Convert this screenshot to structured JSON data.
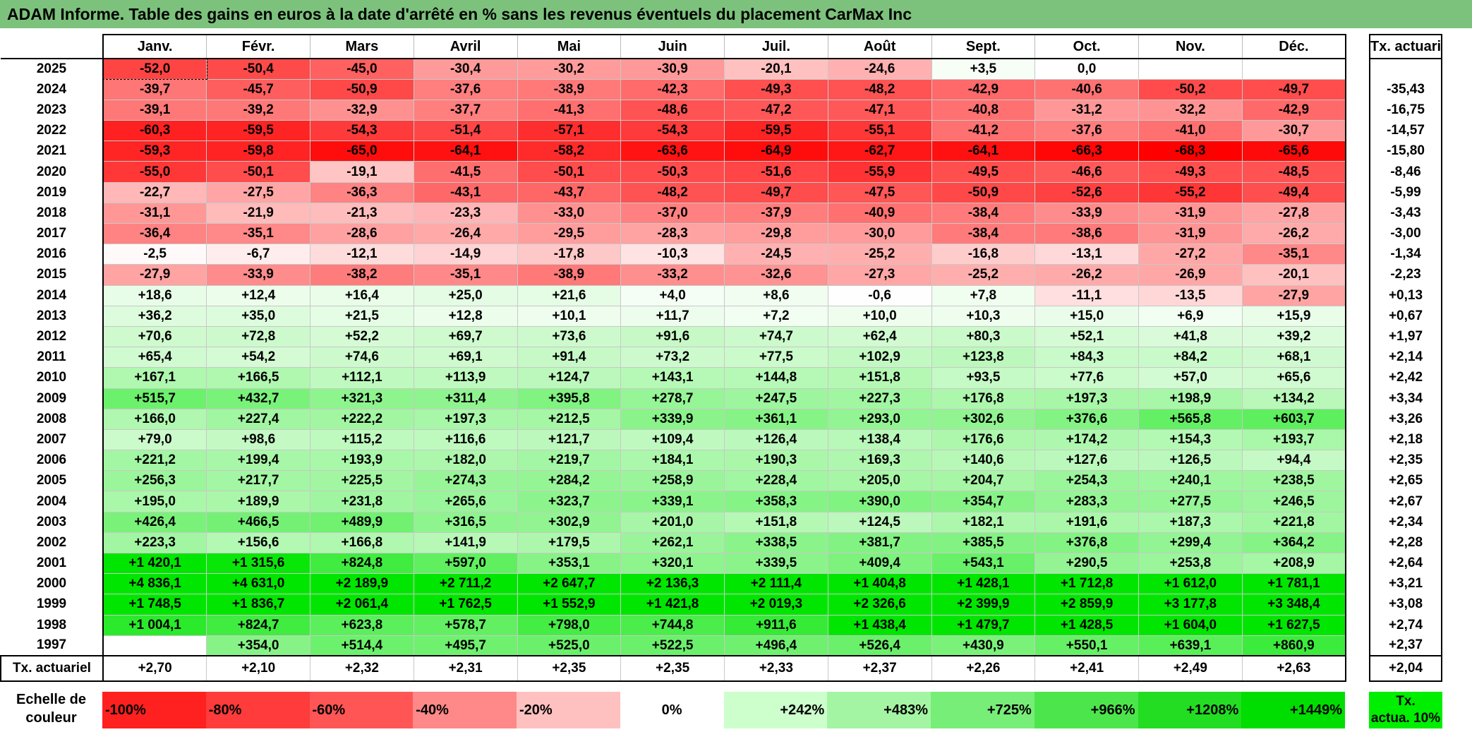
{
  "title": "ADAM Informe. Table des gains en euros à la date d'arrêté en % sans les revenus éventuels du placement CarMax Inc",
  "header": {
    "months": [
      "Janv.",
      "Févr.",
      "Mars",
      "Avril",
      "Mai",
      "Juin",
      "Juil.",
      "Août",
      "Sept.",
      "Oct.",
      "Nov.",
      "Déc."
    ],
    "side": "Tx. actuariel"
  },
  "rows": [
    {
      "year": "2025",
      "cells": [
        "-52,0",
        "-50,4",
        "-45,0",
        "-30,4",
        "-30,2",
        "-30,9",
        "-20,1",
        "-24,6",
        "+3,5",
        "0,0",
        "",
        ""
      ],
      "tx": ""
    },
    {
      "year": "2024",
      "cells": [
        "-39,7",
        "-45,7",
        "-50,9",
        "-37,6",
        "-38,9",
        "-42,3",
        "-49,3",
        "-48,2",
        "-42,9",
        "-40,6",
        "-50,2",
        "-49,7"
      ],
      "tx": "-35,43"
    },
    {
      "year": "2023",
      "cells": [
        "-39,1",
        "-39,2",
        "-32,9",
        "-37,7",
        "-41,3",
        "-48,6",
        "-47,2",
        "-47,1",
        "-40,8",
        "-31,2",
        "-32,2",
        "-42,9"
      ],
      "tx": "-16,75"
    },
    {
      "year": "2022",
      "cells": [
        "-60,3",
        "-59,5",
        "-54,3",
        "-51,4",
        "-57,1",
        "-54,3",
        "-59,5",
        "-55,1",
        "-41,2",
        "-37,6",
        "-41,0",
        "-30,7"
      ],
      "tx": "-14,57"
    },
    {
      "year": "2021",
      "cells": [
        "-59,3",
        "-59,8",
        "-65,0",
        "-64,1",
        "-58,2",
        "-63,6",
        "-64,9",
        "-62,7",
        "-64,1",
        "-66,3",
        "-68,3",
        "-65,6"
      ],
      "tx": "-15,80"
    },
    {
      "year": "2020",
      "cells": [
        "-55,0",
        "-50,1",
        "-19,1",
        "-41,5",
        "-50,1",
        "-50,3",
        "-51,6",
        "-55,9",
        "-49,5",
        "-46,6",
        "-49,3",
        "-48,5"
      ],
      "tx": "-8,46"
    },
    {
      "year": "2019",
      "cells": [
        "-22,7",
        "-27,5",
        "-36,3",
        "-43,1",
        "-43,7",
        "-48,2",
        "-49,7",
        "-47,5",
        "-50,9",
        "-52,6",
        "-55,2",
        "-49,4"
      ],
      "tx": "-5,99"
    },
    {
      "year": "2018",
      "cells": [
        "-31,1",
        "-21,9",
        "-21,3",
        "-23,3",
        "-33,0",
        "-37,0",
        "-37,9",
        "-40,9",
        "-38,4",
        "-33,9",
        "-31,9",
        "-27,8"
      ],
      "tx": "-3,43"
    },
    {
      "year": "2017",
      "cells": [
        "-36,4",
        "-35,1",
        "-28,6",
        "-26,4",
        "-29,5",
        "-28,3",
        "-29,8",
        "-30,0",
        "-38,4",
        "-38,6",
        "-31,9",
        "-26,2"
      ],
      "tx": "-3,00"
    },
    {
      "year": "2016",
      "cells": [
        "-2,5",
        "-6,7",
        "-12,1",
        "-14,9",
        "-17,8",
        "-10,3",
        "-24,5",
        "-25,2",
        "-16,8",
        "-13,1",
        "-27,2",
        "-35,1"
      ],
      "tx": "-1,34"
    },
    {
      "year": "2015",
      "cells": [
        "-27,9",
        "-33,9",
        "-38,2",
        "-35,1",
        "-38,9",
        "-33,2",
        "-32,6",
        "-27,3",
        "-25,2",
        "-26,2",
        "-26,9",
        "-20,1"
      ],
      "tx": "-2,23"
    },
    {
      "year": "2014",
      "cells": [
        "+18,6",
        "+12,4",
        "+16,4",
        "+25,0",
        "+21,6",
        "+4,0",
        "+8,6",
        "-0,6",
        "+7,8",
        "-11,1",
        "-13,5",
        "-27,9"
      ],
      "tx": "+0,13"
    },
    {
      "year": "2013",
      "cells": [
        "+36,2",
        "+35,0",
        "+21,5",
        "+12,8",
        "+10,1",
        "+11,7",
        "+7,2",
        "+10,0",
        "+10,3",
        "+15,0",
        "+6,9",
        "+15,9"
      ],
      "tx": "+0,67"
    },
    {
      "year": "2012",
      "cells": [
        "+70,6",
        "+72,8",
        "+52,2",
        "+69,7",
        "+73,6",
        "+91,6",
        "+74,7",
        "+62,4",
        "+80,3",
        "+52,1",
        "+41,8",
        "+39,2"
      ],
      "tx": "+1,97"
    },
    {
      "year": "2011",
      "cells": [
        "+65,4",
        "+54,2",
        "+74,6",
        "+69,1",
        "+91,4",
        "+73,2",
        "+77,5",
        "+102,9",
        "+123,8",
        "+84,3",
        "+84,2",
        "+68,1"
      ],
      "tx": "+2,14"
    },
    {
      "year": "2010",
      "cells": [
        "+167,1",
        "+166,5",
        "+112,1",
        "+113,9",
        "+124,7",
        "+143,1",
        "+144,8",
        "+151,8",
        "+93,5",
        "+77,6",
        "+57,0",
        "+65,6"
      ],
      "tx": "+2,42"
    },
    {
      "year": "2009",
      "cells": [
        "+515,7",
        "+432,7",
        "+321,3",
        "+311,4",
        "+395,8",
        "+278,7",
        "+247,5",
        "+227,3",
        "+176,8",
        "+197,3",
        "+198,9",
        "+134,2"
      ],
      "tx": "+3,34"
    },
    {
      "year": "2008",
      "cells": [
        "+166,0",
        "+227,4",
        "+222,2",
        "+197,3",
        "+212,5",
        "+339,9",
        "+361,1",
        "+293,0",
        "+302,6",
        "+376,6",
        "+565,8",
        "+603,7"
      ],
      "tx": "+3,26"
    },
    {
      "year": "2007",
      "cells": [
        "+79,0",
        "+98,6",
        "+115,2",
        "+116,6",
        "+121,7",
        "+109,4",
        "+126,4",
        "+138,4",
        "+176,6",
        "+174,2",
        "+154,3",
        "+193,7"
      ],
      "tx": "+2,18"
    },
    {
      "year": "2006",
      "cells": [
        "+221,2",
        "+199,4",
        "+193,9",
        "+182,0",
        "+219,7",
        "+184,1",
        "+190,3",
        "+169,3",
        "+140,6",
        "+127,6",
        "+126,5",
        "+94,4"
      ],
      "tx": "+2,35"
    },
    {
      "year": "2005",
      "cells": [
        "+256,3",
        "+217,7",
        "+225,5",
        "+274,3",
        "+284,2",
        "+258,9",
        "+228,4",
        "+205,0",
        "+204,7",
        "+254,3",
        "+240,1",
        "+238,5"
      ],
      "tx": "+2,65"
    },
    {
      "year": "2004",
      "cells": [
        "+195,0",
        "+189,9",
        "+231,8",
        "+265,6",
        "+323,7",
        "+339,1",
        "+358,3",
        "+390,0",
        "+354,7",
        "+283,3",
        "+277,5",
        "+246,5"
      ],
      "tx": "+2,67"
    },
    {
      "year": "2003",
      "cells": [
        "+426,4",
        "+466,5",
        "+489,9",
        "+316,5",
        "+302,9",
        "+201,0",
        "+151,8",
        "+124,5",
        "+182,1",
        "+191,6",
        "+187,3",
        "+221,8"
      ],
      "tx": "+2,34"
    },
    {
      "year": "2002",
      "cells": [
        "+223,3",
        "+156,6",
        "+166,8",
        "+141,9",
        "+179,5",
        "+262,1",
        "+338,5",
        "+381,7",
        "+385,5",
        "+376,8",
        "+299,4",
        "+364,2"
      ],
      "tx": "+2,28"
    },
    {
      "year": "2001",
      "cells": [
        "+1 420,1",
        "+1 315,6",
        "+824,8",
        "+597,0",
        "+353,1",
        "+320,1",
        "+339,5",
        "+409,4",
        "+543,1",
        "+290,5",
        "+253,8",
        "+208,9"
      ],
      "tx": "+2,64"
    },
    {
      "year": "2000",
      "cells": [
        "+4 836,1",
        "+4 631,0",
        "+2 189,9",
        "+2 711,2",
        "+2 647,7",
        "+2 136,3",
        "+2 111,4",
        "+1 404,8",
        "+1 428,1",
        "+1 712,8",
        "+1 612,0",
        "+1 781,1"
      ],
      "tx": "+3,21"
    },
    {
      "year": "1999",
      "cells": [
        "+1 748,5",
        "+1 836,7",
        "+2 061,4",
        "+1 762,5",
        "+1 552,9",
        "+1 421,8",
        "+2 019,3",
        "+2 326,6",
        "+2 399,9",
        "+2 859,9",
        "+3 177,8",
        "+3 348,4"
      ],
      "tx": "+3,08"
    },
    {
      "year": "1998",
      "cells": [
        "+1 004,1",
        "+824,7",
        "+623,8",
        "+578,7",
        "+798,0",
        "+744,8",
        "+911,6",
        "+1 438,4",
        "+1 479,7",
        "+1 428,5",
        "+1 604,0",
        "+1 627,5"
      ],
      "tx": "+2,74"
    },
    {
      "year": "1997",
      "cells": [
        "",
        "+354,0",
        "+514,4",
        "+495,7",
        "+525,0",
        "+522,5",
        "+496,4",
        "+526,4",
        "+430,9",
        "+550,1",
        "+639,1",
        "+860,9"
      ],
      "tx": "+2,37"
    }
  ],
  "tx_row": {
    "label": "Tx. actuariel",
    "cells": [
      "+2,70",
      "+2,10",
      "+2,32",
      "+2,31",
      "+2,35",
      "+2,35",
      "+2,33",
      "+2,37",
      "+2,26",
      "+2,41",
      "+2,49",
      "+2,63"
    ],
    "tx": "+2,04"
  },
  "legend": {
    "label_line1": "Echelle de",
    "label_line2": "couleur",
    "items": [
      "-100%",
      "-80%",
      "-60%",
      "-40%",
      "-20%",
      "0%",
      "+242%",
      "+483%",
      "+725%",
      "+966%",
      "+1208%",
      "+1449%"
    ],
    "colors": [
      "#ff2020",
      "#ff3b3b",
      "#ff5555",
      "#ff8888",
      "#ffc0c0",
      "#ffffff",
      "#ccffcc",
      "#a3f5a3",
      "#77ee77",
      "#4ce64c",
      "#22dd22",
      "#00dd00"
    ],
    "side_line1": "Tx.",
    "side_line2": "actua. 10%",
    "side_color": "#00ee00"
  }
}
